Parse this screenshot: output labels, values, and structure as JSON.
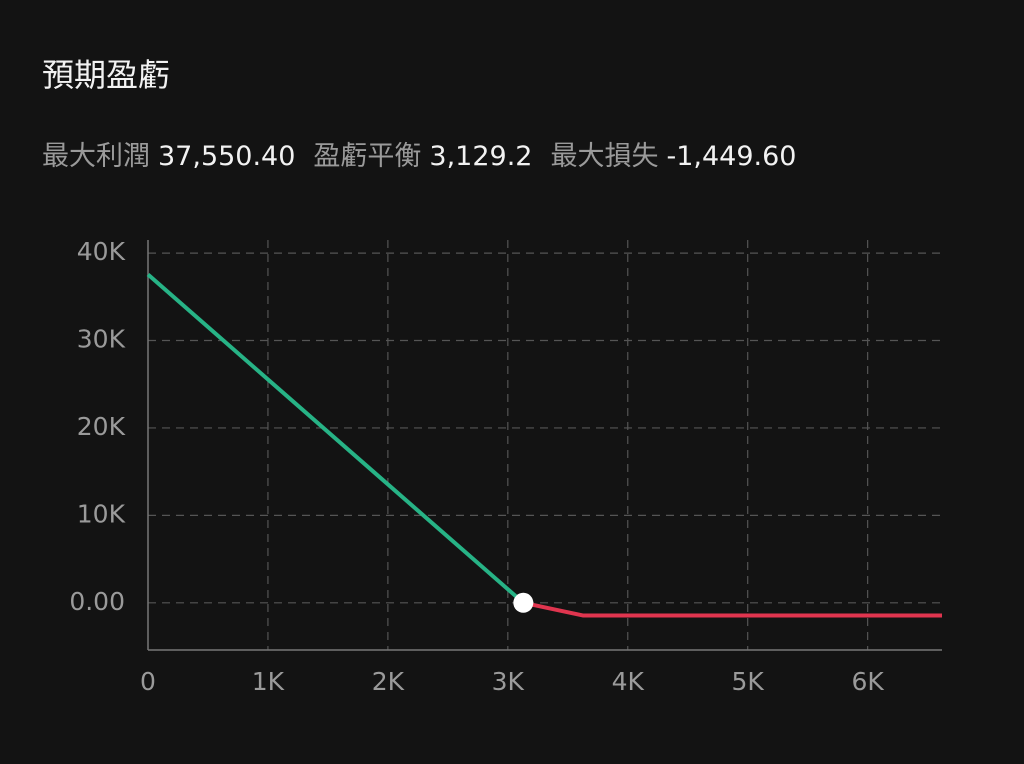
{
  "chart_data": {
    "type": "line",
    "title": "預期盈虧",
    "stats": [
      {
        "label": "最大利潤",
        "value": "37,550.40"
      },
      {
        "label": "盈虧平衡",
        "value": "3,129.2"
      },
      {
        "label": "最大損失",
        "value": "-1,449.60"
      }
    ],
    "series": [
      {
        "color": "#27b386",
        "x": [
          0,
          3129.2
        ],
        "values": [
          37550.4,
          0
        ]
      },
      {
        "color": "#e0354f",
        "x": [
          3129.2,
          3625,
          6620
        ],
        "values": [
          0,
          -1449.6,
          -1449.6
        ]
      }
    ],
    "marker": {
      "x": 3129.2,
      "value": 0,
      "color": "#ffffff"
    },
    "xlim": [
      0,
      6620
    ],
    "ylim": [
      -5400,
      41500
    ],
    "xticks": [
      0,
      {
        "value": 1000,
        "label": "1K"
      },
      {
        "value": 2000,
        "label": "2K"
      },
      {
        "value": 3000,
        "label": "3K"
      },
      {
        "value": 4000,
        "label": "4K"
      },
      {
        "value": 5000,
        "label": "5K"
      },
      {
        "value": 6000,
        "label": "6K"
      }
    ],
    "yticks": [
      {
        "value": 0,
        "label": "0.00"
      },
      {
        "value": 10000,
        "label": "10K"
      },
      {
        "value": 20000,
        "label": "20K"
      },
      {
        "value": 30000,
        "label": "30K"
      },
      {
        "value": 40000,
        "label": "40K"
      }
    ],
    "grid": true
  }
}
